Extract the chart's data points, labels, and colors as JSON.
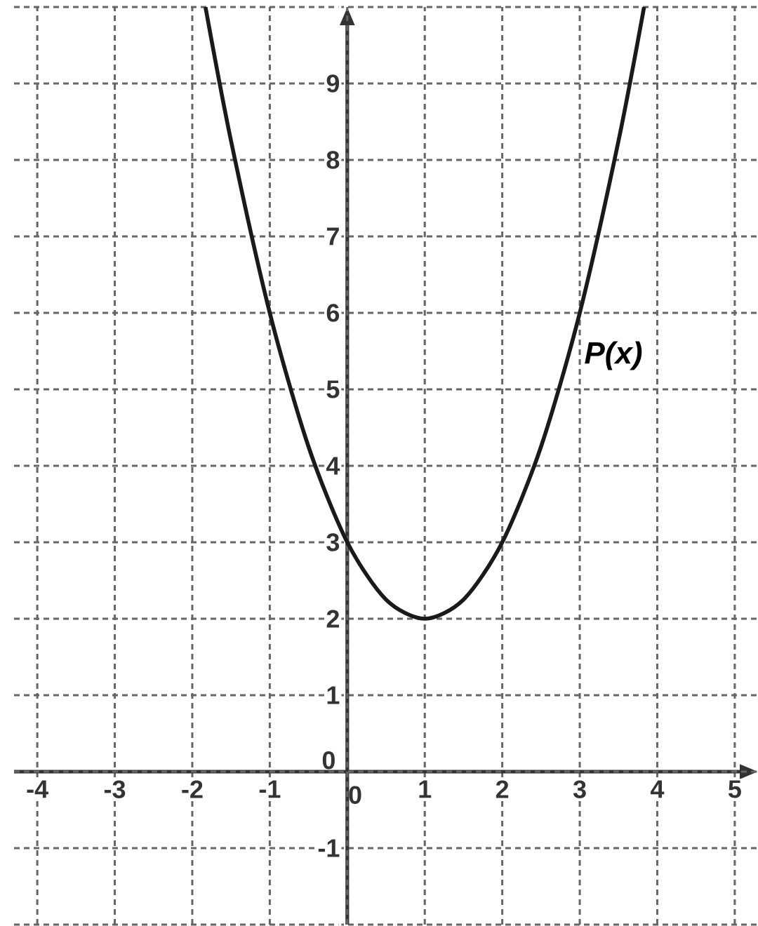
{
  "chart_data": {
    "type": "line",
    "series": [
      {
        "name": "P(x)",
        "color": "#1a1a1a",
        "x": [
          -1.83,
          -1.5,
          -1,
          -0.5,
          0,
          0.5,
          1,
          1.5,
          2,
          2.5,
          3,
          3.5,
          3.83
        ],
        "values": [
          10,
          8.25,
          6,
          4.25,
          3,
          2.25,
          2,
          2.25,
          3,
          4.25,
          6,
          8.25,
          10
        ]
      }
    ],
    "xlim": [
      -4.3,
      5.3
    ],
    "ylim": [
      -2,
      10
    ],
    "xticks": [
      -4,
      -3,
      -2,
      -1,
      0,
      1,
      2,
      3,
      4,
      5
    ],
    "yticks": [
      {
        "value": -2,
        "label": null
      },
      -1,
      0,
      1,
      2,
      3,
      4,
      5,
      6,
      7,
      8,
      9,
      {
        "value": 10,
        "label": null
      }
    ],
    "grid": true,
    "marker": "none",
    "line_style": "solid",
    "legend": false
  }
}
